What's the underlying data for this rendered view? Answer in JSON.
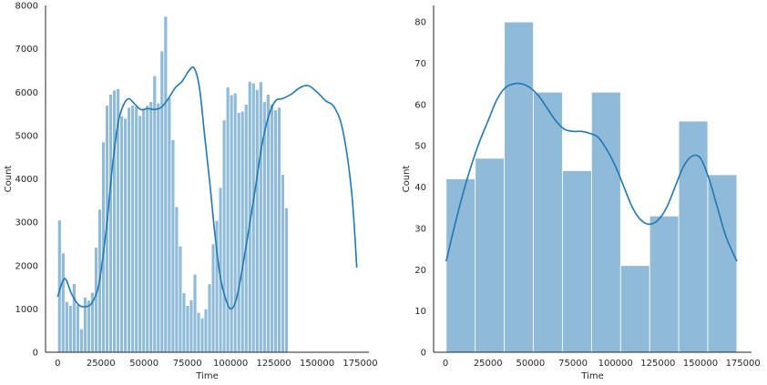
{
  "chart_data": [
    {
      "type": "bar",
      "subtype": "histogram-with-kde",
      "title": "",
      "xlabel": "Time",
      "ylabel": "Count",
      "xlim": [
        -7000,
        180000
      ],
      "ylim": [
        0,
        8000
      ],
      "xticks": [
        0,
        25000,
        50000,
        75000,
        100000,
        125000,
        150000,
        175000
      ],
      "yticks": [
        0,
        1000,
        2000,
        3000,
        4000,
        5000,
        6000,
        7000,
        8000
      ],
      "grid": false,
      "bin_start": 0,
      "bin_width": 2117,
      "values": [
        3050,
        2290,
        1170,
        1080,
        1580,
        1100,
        540,
        1270,
        1200,
        1380,
        2420,
        3300,
        4850,
        5700,
        5950,
        6050,
        6080,
        5450,
        5400,
        5650,
        5700,
        5680,
        5460,
        5620,
        5700,
        5780,
        6380,
        5750,
        6950,
        7750,
        5880,
        4900,
        3360,
        2450,
        1370,
        1080,
        1210,
        1800,
        920,
        790,
        1000,
        1580,
        2500,
        3040,
        3800,
        5360,
        6120,
        5940,
        5980,
        5530,
        5560,
        5720,
        6250,
        6210,
        6060,
        6240,
        5780,
        5950,
        5730,
        5590,
        5650,
        4100,
        3330
      ],
      "kde": {
        "x": [
          0,
          4000,
          8000,
          12000,
          16000,
          20000,
          24000,
          28000,
          30000,
          32000,
          35000,
          38000,
          41000,
          44000,
          48000,
          52000,
          56000,
          60000,
          64000,
          68000,
          72000,
          76000,
          79000,
          82000,
          85000,
          88000,
          91000,
          94000,
          97000,
          100000,
          103000,
          106000,
          110000,
          114000,
          118000,
          122000,
          126000,
          130000,
          135000,
          140000,
          145000,
          150000,
          155000,
          160000,
          165000,
          170000,
          173000
        ],
        "y": [
          1280,
          1700,
          1350,
          1100,
          1050,
          1150,
          1600,
          2800,
          3600,
          4400,
          5300,
          5700,
          5850,
          5750,
          5600,
          5620,
          5600,
          5650,
          5850,
          6100,
          6250,
          6500,
          6550,
          6100,
          5000,
          3900,
          2700,
          1750,
          1250,
          1000,
          1180,
          1750,
          2700,
          3700,
          4750,
          5450,
          5800,
          5850,
          5950,
          6100,
          6150,
          6000,
          5800,
          5650,
          5100,
          3700,
          1950
        ]
      }
    },
    {
      "type": "bar",
      "subtype": "histogram-with-kde",
      "title": "",
      "xlabel": "Time",
      "ylabel": "Count",
      "xlim": [
        -7000,
        180000
      ],
      "ylim": [
        0,
        84
      ],
      "xticks": [
        0,
        25000,
        50000,
        75000,
        100000,
        125000,
        150000,
        175000
      ],
      "yticks": [
        0,
        10,
        20,
        30,
        40,
        50,
        60,
        70,
        80
      ],
      "grid": false,
      "bin_start": 400,
      "bin_width": 17100,
      "values": [
        42,
        47,
        80,
        63,
        44,
        63,
        21,
        33,
        56,
        43
      ],
      "kde": {
        "x": [
          400,
          5000,
          10000,
          15000,
          20000,
          25000,
          30000,
          35000,
          40000,
          45000,
          50000,
          55000,
          60000,
          65000,
          70000,
          75000,
          80000,
          85000,
          90000,
          95000,
          100000,
          105000,
          110000,
          115000,
          120000,
          125000,
          130000,
          135000,
          140000,
          145000,
          150000,
          155000,
          160000,
          165000,
          171400
        ],
        "y": [
          22,
          30,
          38,
          45,
          51,
          56,
          61,
          64,
          65,
          65,
          64,
          62,
          59,
          56,
          54,
          53.5,
          53.5,
          53,
          52,
          49,
          45,
          40,
          35,
          32,
          31,
          32,
          35,
          40,
          45,
          47.5,
          47,
          42,
          35,
          28,
          22
        ]
      }
    }
  ]
}
